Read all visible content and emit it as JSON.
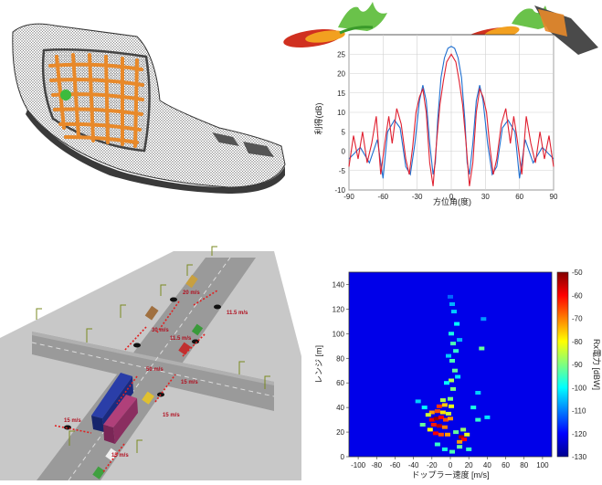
{
  "panels": {
    "bumper": {
      "kind": "3d-mesh-render"
    },
    "traffic": {
      "kind": "3d-scene-render",
      "speed_labels": [
        "20 m/s",
        "30 m/s",
        "11.5 m/s",
        "11.5 m/s",
        "50 m/s",
        "15 m/s",
        "15 m/s",
        "15 m/s",
        "15 m/s"
      ],
      "colors": {
        "road": "#9a9a9a",
        "ground": "#c8c8c8",
        "truck_blue": "#2a3ea8",
        "truck_magenta": "#b0407a",
        "arrow": "#e02020"
      }
    }
  },
  "chart_data": [
    {
      "type": "line",
      "xlabel": "方位角(度)",
      "ylabel": "利得(dB)",
      "xlim": [
        -90,
        90
      ],
      "ylim": [
        -10,
        30
      ],
      "xticks": [
        -90,
        -60,
        -30,
        0,
        30,
        60,
        90
      ],
      "yticks": [
        -10,
        -5,
        0,
        5,
        10,
        15,
        20,
        25
      ],
      "grid": true,
      "colors": {
        "blue": "#1f6fd0",
        "red": "#e02030"
      },
      "series": [
        {
          "color": "blue",
          "x": [
            -90,
            -80,
            -72,
            -65,
            -60,
            -56,
            -50,
            -45,
            -40,
            -36,
            -32,
            -28,
            -25,
            -22,
            -19,
            -16,
            -14,
            -12,
            -9,
            -6,
            -3,
            0,
            3,
            6,
            9,
            12,
            14,
            16,
            19,
            22,
            25,
            28,
            32,
            36,
            40,
            45,
            50,
            56,
            60,
            65,
            72,
            80,
            90
          ],
          "y": [
            -2,
            1,
            -3,
            3,
            -7,
            5,
            8,
            6,
            -4,
            -6,
            2,
            13,
            17,
            13,
            2,
            -6,
            -3,
            8,
            19,
            24,
            26.5,
            27,
            26.5,
            24,
            19,
            8,
            -3,
            -6,
            2,
            13,
            17,
            13,
            2,
            -6,
            -4,
            6,
            8,
            5,
            -7,
            3,
            -3,
            1,
            -2
          ]
        },
        {
          "color": "red",
          "x": [
            -90,
            -86,
            -82,
            -78,
            -74,
            -70,
            -66,
            -62,
            -58,
            -55,
            -52,
            -48,
            -44,
            -40,
            -37,
            -34,
            -31,
            -28,
            -25,
            -22,
            -19,
            -16,
            -13,
            -10,
            -7,
            -4,
            0,
            4,
            7,
            10,
            13,
            16,
            19,
            22,
            25,
            28,
            31,
            34,
            37,
            40,
            44,
            48,
            52,
            55,
            58,
            62,
            66,
            70,
            74,
            78,
            82,
            86,
            90
          ],
          "y": [
            -4,
            4,
            -2,
            5,
            -3,
            2,
            9,
            -6,
            3,
            9,
            2,
            11,
            7,
            -2,
            -6,
            1,
            10,
            14,
            16,
            10,
            -3,
            -9,
            2,
            12,
            18,
            23,
            25,
            23,
            18,
            12,
            2,
            -9,
            -3,
            10,
            16,
            14,
            10,
            1,
            -6,
            -2,
            7,
            11,
            2,
            9,
            3,
            -6,
            9,
            2,
            -3,
            5,
            -2,
            4,
            -4
          ]
        }
      ]
    },
    {
      "type": "heatmap",
      "xlabel": "ドップラー速度 [m/s]",
      "ylabel": "レンジ [m]",
      "colorbar_label": "Rx電力 [dBW]",
      "xlim": [
        -110,
        110
      ],
      "ylim": [
        0,
        150
      ],
      "xticks": [
        -100,
        -80,
        -60,
        -40,
        -20,
        0,
        20,
        40,
        60,
        80,
        100
      ],
      "yticks": [
        0,
        20,
        40,
        60,
        80,
        100,
        120,
        140
      ],
      "color_range": [
        -130,
        -50
      ],
      "colorbar_ticks": [
        -50,
        -60,
        -70,
        -80,
        -90,
        -100,
        -110,
        -120,
        -130
      ],
      "background_value": -122,
      "cells": [
        [
          -20,
          30,
          -58
        ],
        [
          -15,
          31,
          -52
        ],
        [
          -10,
          32,
          -60
        ],
        [
          -5,
          30,
          -66
        ],
        [
          0,
          31,
          -72
        ],
        [
          -18,
          26,
          -62
        ],
        [
          -12,
          25,
          -55
        ],
        [
          -6,
          24,
          -70
        ],
        [
          -16,
          19,
          -60
        ],
        [
          -10,
          18,
          -66
        ],
        [
          -3,
          18,
          -72
        ],
        [
          -20,
          36,
          -72
        ],
        [
          -14,
          37,
          -66
        ],
        [
          -8,
          36,
          -78
        ],
        [
          -2,
          35,
          -84
        ],
        [
          -12,
          41,
          -64
        ],
        [
          -6,
          42,
          -76
        ],
        [
          1,
          41,
          -82
        ],
        [
          -8,
          46,
          -86
        ],
        [
          0,
          47,
          -90
        ],
        [
          -22,
          22,
          -80
        ],
        [
          -24,
          34,
          -84
        ],
        [
          12,
          16,
          -54
        ],
        [
          15,
          14,
          -60
        ],
        [
          10,
          12,
          -72
        ],
        [
          18,
          18,
          -82
        ],
        [
          6,
          20,
          -92
        ],
        [
          14,
          22,
          -88
        ],
        [
          3,
          55,
          -90
        ],
        [
          1,
          62,
          -86
        ],
        [
          5,
          70,
          -92
        ],
        [
          2,
          78,
          -94
        ],
        [
          6,
          86,
          -96
        ],
        [
          3,
          92,
          -94
        ],
        [
          1,
          100,
          -98
        ],
        [
          7,
          108,
          -100
        ],
        [
          4,
          118,
          -104
        ],
        [
          2,
          124,
          -106
        ],
        [
          -4,
          60,
          -100
        ],
        [
          8,
          65,
          -102
        ],
        [
          -2,
          82,
          -104
        ],
        [
          10,
          95,
          -106
        ],
        [
          0,
          130,
          -112
        ],
        [
          30,
          30,
          -96
        ],
        [
          40,
          32,
          -102
        ],
        [
          34,
          88,
          -92
        ],
        [
          36,
          112,
          -108
        ],
        [
          -30,
          26,
          -92
        ],
        [
          -35,
          45,
          -104
        ],
        [
          20,
          6,
          -96
        ],
        [
          -6,
          6,
          -98
        ],
        [
          2,
          4,
          -94
        ],
        [
          -28,
          40,
          -100
        ],
        [
          25,
          40,
          -98
        ],
        [
          30,
          52,
          -104
        ],
        [
          -14,
          10,
          -96
        ],
        [
          10,
          8,
          -92
        ]
      ]
    }
  ]
}
